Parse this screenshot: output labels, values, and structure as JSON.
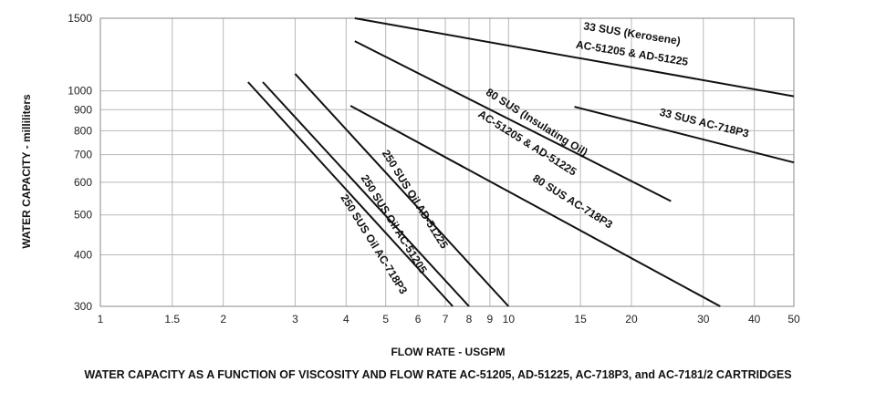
{
  "caption": "WATER CAPACITY AS A FUNCTION OF VISCOSITY AND FLOW RATE AC-51205, AD-51225, AC-718P3, and AC-7181/2 CARTRIDGES",
  "chart_data": {
    "type": "line",
    "title": "",
    "xlabel": "FLOW RATE - USGPM",
    "ylabel": "WATER CAPACITY - milliliters",
    "xscale": "log",
    "yscale": "log",
    "xlim": [
      1,
      50
    ],
    "ylim": [
      300,
      1500
    ],
    "grid": true,
    "x_ticks": [
      {
        "value": 1,
        "label": "1"
      },
      {
        "value": 1.5,
        "label": "1.5"
      },
      {
        "value": 2,
        "label": "2"
      },
      {
        "value": 3,
        "label": "3"
      },
      {
        "value": 4,
        "label": "4"
      },
      {
        "value": 5,
        "label": "5"
      },
      {
        "value": 6,
        "label": "6"
      },
      {
        "value": 7,
        "label": "7"
      },
      {
        "value": 8,
        "label": "8"
      },
      {
        "value": 9,
        "label": "9"
      },
      {
        "value": 10,
        "label": "10"
      },
      {
        "value": 15,
        "label": "15"
      },
      {
        "value": 20,
        "label": "20"
      },
      {
        "value": 30,
        "label": "30"
      },
      {
        "value": 40,
        "label": "40"
      },
      {
        "value": 50,
        "label": "50"
      }
    ],
    "y_ticks": [
      {
        "value": 300,
        "label": "300"
      },
      {
        "value": 400,
        "label": "400"
      },
      {
        "value": 500,
        "label": "500"
      },
      {
        "value": 600,
        "label": "600"
      },
      {
        "value": 700,
        "label": "700"
      },
      {
        "value": 800,
        "label": "800"
      },
      {
        "value": 900,
        "label": "900"
      },
      {
        "value": 1000,
        "label": "1000"
      },
      {
        "value": 1500,
        "label": "1500"
      }
    ],
    "series": [
      {
        "name": "33 SUS (Kerosene) AC-51205 & AD-51225",
        "x": [
          4.2,
          50
        ],
        "y": [
          1500,
          970
        ]
      },
      {
        "name": "33 SUS AC-718P3",
        "x": [
          14.5,
          50
        ],
        "y": [
          915,
          670
        ]
      },
      {
        "name": "80 SUS (Insulating Oil) AC-51205 & AD-51225",
        "x": [
          4.2,
          25
        ],
        "y": [
          1320,
          540
        ]
      },
      {
        "name": "80 SUS AC-718P3",
        "x": [
          4.1,
          33
        ],
        "y": [
          920,
          300
        ]
      },
      {
        "name": "250 SUS Oil AD-51225",
        "x": [
          3,
          10
        ],
        "y": [
          1100,
          300
        ]
      },
      {
        "name": "250 SUS Oil AC-51205",
        "x": [
          2.5,
          8
        ],
        "y": [
          1050,
          300
        ]
      },
      {
        "name": "250 SUS Oil AC-718P3",
        "x": [
          2.3,
          7.3
        ],
        "y": [
          1050,
          300
        ]
      }
    ],
    "labels": [
      {
        "text": "33 SUS  (Kerosene)",
        "x": 20,
        "y": 1350,
        "angle": 9
      },
      {
        "text": "AC-51205 & AD-51225",
        "x": 20,
        "y": 1210,
        "angle": 9
      },
      {
        "text": "33 SUS AC-718P3",
        "x": 30,
        "y": 820,
        "angle": 14
      },
      {
        "text": "80 SUS  (Insulating Oil)",
        "x": 11.6,
        "y": 825,
        "angle": 32
      },
      {
        "text": "AC-51205 & AD-51225",
        "x": 11,
        "y": 735,
        "angle": 32
      },
      {
        "text": "80 SUS AC-718P3",
        "x": 14.2,
        "y": 530,
        "angle": 32
      },
      {
        "text": "250 SUS Oil AD-51225",
        "x": 5.8,
        "y": 540,
        "angle": 58
      },
      {
        "text": "250 SUS Oil AC-51205",
        "x": 5.15,
        "y": 470,
        "angle": 58
      },
      {
        "text": "250 SUS Oil AC-718P3",
        "x": 4.6,
        "y": 420,
        "angle": 58
      }
    ]
  }
}
